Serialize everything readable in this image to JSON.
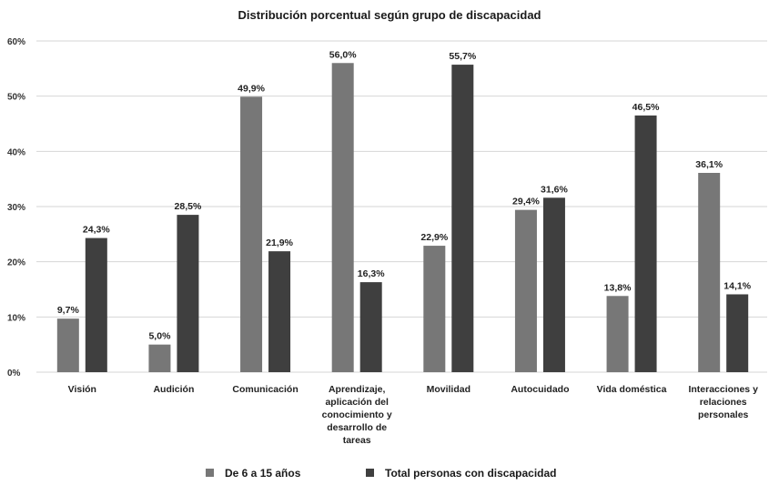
{
  "chart_data": {
    "type": "bar",
    "title": "Distribución porcentual según grupo de discapacidad",
    "categories": [
      [
        "Visión"
      ],
      [
        "Audición"
      ],
      [
        "Comunicación"
      ],
      [
        "Aprendizaje,",
        "aplicación del",
        "conocimiento y",
        "desarrollo de",
        "tareas"
      ],
      [
        "Movilidad"
      ],
      [
        "Autocuidado"
      ],
      [
        "Vida doméstica"
      ],
      [
        "Interacciones y",
        "relaciones",
        "personales"
      ]
    ],
    "series": [
      {
        "name": "De 6 a 15 años",
        "color": "#777777",
        "values": [
          9.7,
          5.0,
          49.9,
          56.0,
          22.9,
          29.4,
          13.8,
          36.1
        ],
        "labels": [
          "9,7%",
          "5,0%",
          "49,9%",
          "56,0%",
          "22,9%",
          "29,4%",
          "13,8%",
          "36,1%"
        ]
      },
      {
        "name": "Total personas con discapacidad",
        "color": "#3f3f3f",
        "values": [
          24.3,
          28.5,
          21.9,
          16.3,
          55.7,
          31.6,
          46.5,
          14.1
        ],
        "labels": [
          "24,3%",
          "28,5%",
          "21,9%",
          "16,3%",
          "55,7%",
          "31,6%",
          "46,5%",
          "14,1%"
        ]
      }
    ],
    "ylim": [
      0,
      60
    ],
    "yticks": [
      0,
      10,
      20,
      30,
      40,
      50,
      60
    ],
    "ytick_labels": [
      "0%",
      "10%",
      "20%",
      "30%",
      "40%",
      "50%",
      "60%"
    ],
    "grid": true,
    "legend_position": "bottom"
  }
}
